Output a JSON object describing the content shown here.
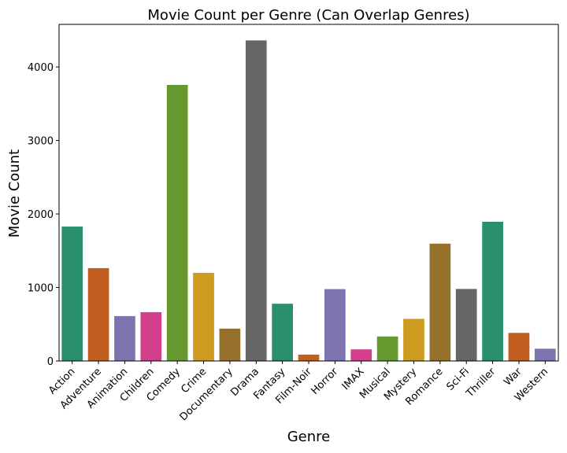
{
  "chart_data": {
    "type": "bar",
    "title": "Movie Count per Genre (Can Overlap Genres)",
    "xlabel": "Genre",
    "ylabel": "Movie Count",
    "categories": [
      "Action",
      "Adventure",
      "Animation",
      "Children",
      "Comedy",
      "Crime",
      "Documentary",
      "Drama",
      "Fantasy",
      "Film-Noir",
      "Horror",
      "IMAX",
      "Musical",
      "Mystery",
      "Romance",
      "Sci-Fi",
      "Thriller",
      "War",
      "Western"
    ],
    "values": [
      1828,
      1263,
      611,
      664,
      3756,
      1199,
      440,
      4361,
      779,
      87,
      978,
      158,
      334,
      573,
      1596,
      980,
      1894,
      382,
      167
    ],
    "colors": [
      "#2a8f6f",
      "#c05f1f",
      "#7b74ae",
      "#d33f8b",
      "#65982e",
      "#cc9b20",
      "#94702b",
      "#666666",
      "#2a8f6f",
      "#c05f1f",
      "#7b74ae",
      "#d33f8b",
      "#65982e",
      "#cc9b20",
      "#94702b",
      "#666666",
      "#2a8f6f",
      "#c05f1f",
      "#7b74ae"
    ],
    "ylim": [
      0,
      4579
    ],
    "yticks": [
      0,
      1000,
      2000,
      3000,
      4000
    ],
    "grid": false
  }
}
